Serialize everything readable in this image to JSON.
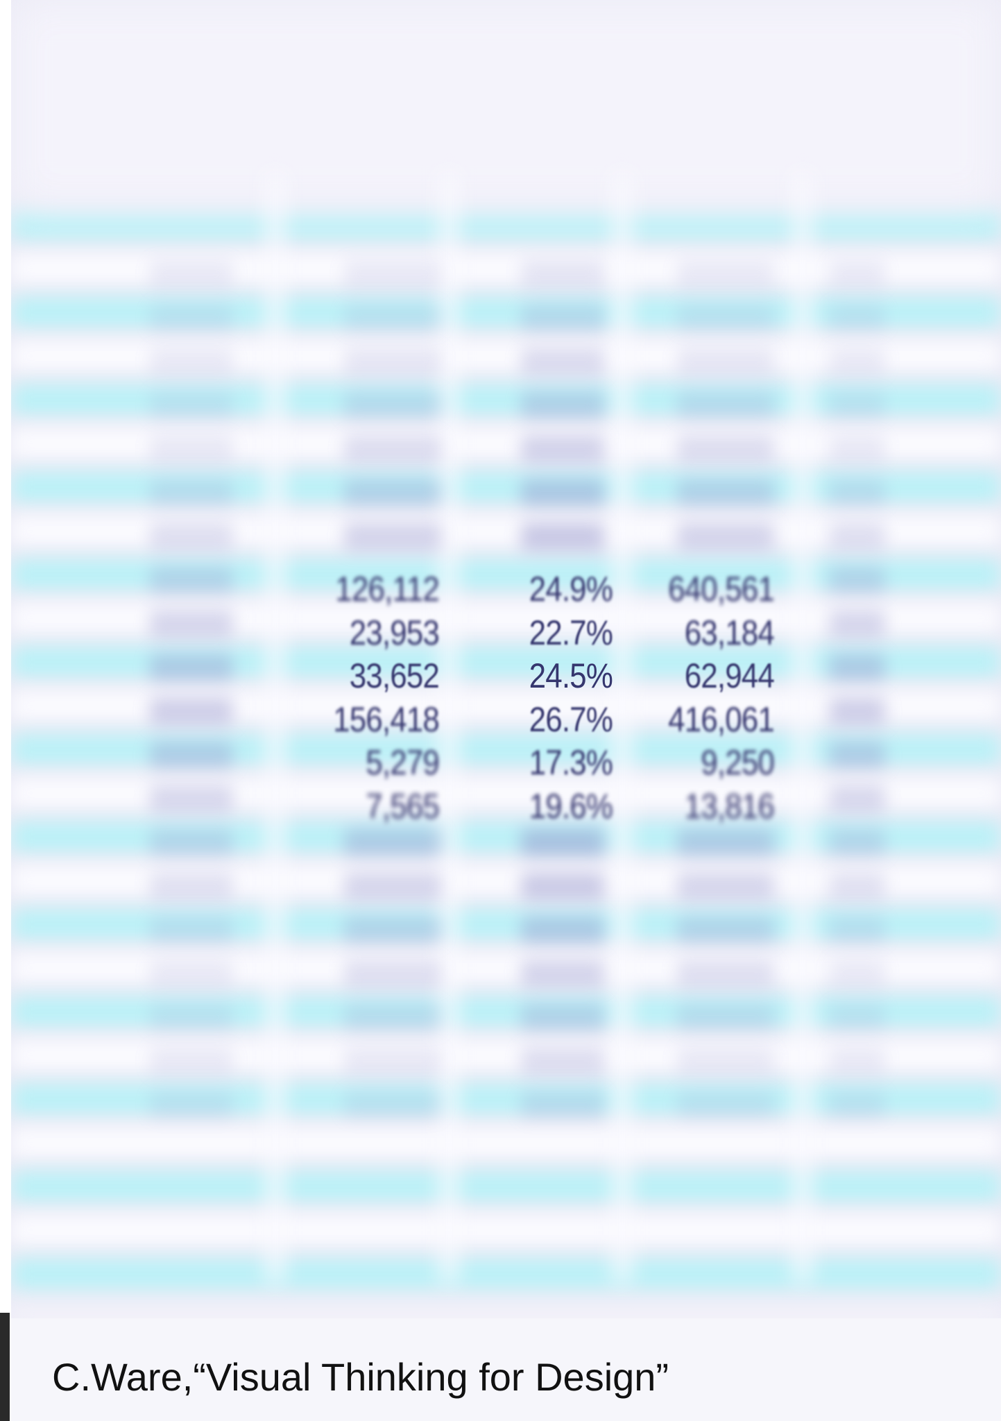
{
  "table": {
    "rows": [
      [
        "126,112",
        "24.9%",
        "640,561"
      ],
      [
        "23,953",
        "22.7%",
        "63,184"
      ],
      [
        "33,652",
        "24.5%",
        "62,944"
      ],
      [
        "156,418",
        "26.7%",
        "416,061"
      ],
      [
        "5,279",
        "17.3%",
        "9,250"
      ],
      [
        "7,565",
        "19.6%",
        "13,816"
      ]
    ]
  },
  "caption": "C.Ware,“Visual Thinking for Design”"
}
